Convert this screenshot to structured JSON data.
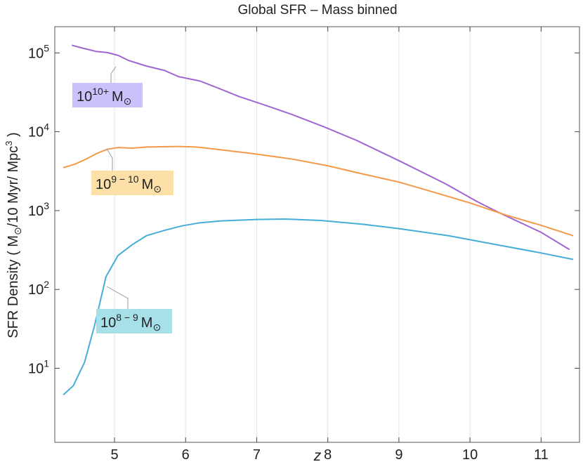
{
  "chart_data": {
    "type": "line",
    "title": "Global SFR – Mass binned",
    "xlabel": "z",
    "ylabel": {
      "text": "SFR Density ( M",
      "sub": "⊙",
      "text2": "/10 Myr/ Mpc",
      "sup": "3",
      "text3": " )"
    },
    "xlim": [
      4.16,
      11.54
    ],
    "ylim": [
      1.15,
      215000
    ],
    "log_y": true,
    "grid": "x",
    "xticks": [
      5,
      6,
      7,
      8,
      9,
      10,
      11
    ],
    "yticks": [
      {
        "value": 10,
        "label": "10",
        "exponent": "1"
      },
      {
        "value": 100,
        "label": "10",
        "exponent": "2"
      },
      {
        "value": 1000,
        "label": "10",
        "exponent": "3"
      },
      {
        "value": 10000,
        "label": "10",
        "exponent": "4"
      },
      {
        "value": 100000,
        "label": "10",
        "exponent": "5"
      }
    ],
    "series": [
      {
        "name": {
          "base": "10",
          "exponent": "10+",
          "unit": "M",
          "sub": "⊙"
        },
        "color": "#a066d3",
        "label_color": "#ccc2fb",
        "x": [
          4.4,
          4.55,
          4.75,
          4.9,
          5.05,
          5.2,
          5.45,
          5.7,
          5.9,
          6.2,
          6.45,
          6.75,
          7.1,
          7.5,
          7.95,
          8.4,
          9.0,
          9.65,
          10.1,
          10.4,
          11.0,
          11.4
        ],
        "values": [
          125000,
          115000,
          104000,
          101000,
          93000,
          80000,
          68000,
          60000,
          50000,
          44000,
          36000,
          28000,
          22000,
          16500,
          11500,
          7800,
          4300,
          2200,
          1300,
          950,
          530,
          320
        ]
      },
      {
        "name": {
          "base": "10",
          "exponent": "9 − 10",
          "unit": "M",
          "sub": "⊙"
        },
        "color": "#f39a48",
        "label_color": "#fde0a8",
        "x": [
          4.28,
          4.45,
          4.6,
          4.75,
          4.9,
          5.05,
          5.25,
          5.45,
          5.9,
          6.15,
          6.5,
          7.0,
          7.5,
          8.0,
          8.5,
          9.0,
          9.5,
          10.0,
          10.5,
          11.0,
          11.45
        ],
        "values": [
          3500,
          3900,
          4500,
          5300,
          6000,
          6300,
          6200,
          6400,
          6500,
          6400,
          5900,
          5200,
          4500,
          3700,
          2900,
          2300,
          1700,
          1250,
          880,
          650,
          480
        ]
      },
      {
        "name": {
          "base": "10",
          "exponent": "8 − 9",
          "unit": "M",
          "sub": "⊙"
        },
        "color": "#45aed8",
        "label_color": "#a8e0ea",
        "x": [
          4.28,
          4.42,
          4.58,
          4.72,
          4.88,
          5.05,
          5.25,
          5.45,
          5.7,
          5.95,
          6.2,
          6.5,
          7.0,
          7.4,
          7.9,
          8.5,
          9.0,
          9.7,
          10.3,
          11.0,
          11.45
        ],
        "values": [
          4.6,
          6,
          12,
          35,
          145,
          270,
          370,
          480,
          560,
          640,
          700,
          740,
          770,
          780,
          750,
          670,
          590,
          480,
          380,
          290,
          240
        ]
      }
    ]
  }
}
